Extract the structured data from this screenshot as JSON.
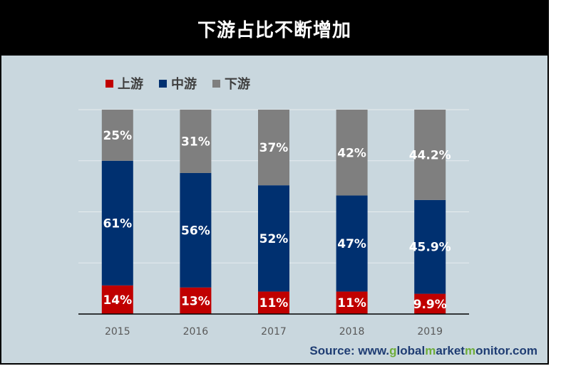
{
  "title": "下游占比不断增加",
  "legend": [
    {
      "label": "上游",
      "color": "#c00000"
    },
    {
      "label": "中游",
      "color": "#003070"
    },
    {
      "label": "下游",
      "color": "#7f7f7f"
    }
  ],
  "source": {
    "prefix": "Source: www.",
    "part1": "g",
    "part2": "lobal",
    "part3": "m",
    "part4": "arket",
    "part5": "m",
    "part6": "onitor",
    "suffix": ".com"
  },
  "chart_data": {
    "type": "bar",
    "stacked": true,
    "categories": [
      "2015",
      "2016",
      "2017",
      "2018",
      "2019"
    ],
    "series": [
      {
        "name": "上游",
        "color": "#c00000",
        "values": [
          14,
          13,
          11,
          11,
          9.9
        ],
        "labels": [
          "14%",
          "13%",
          "11%",
          "11%",
          "9.9%"
        ]
      },
      {
        "name": "中游",
        "color": "#003070",
        "values": [
          61,
          56,
          52,
          47,
          45.9
        ],
        "labels": [
          "61%",
          "56%",
          "52%",
          "47%",
          "45.9%"
        ]
      },
      {
        "name": "下游",
        "color": "#7f7f7f",
        "values": [
          25,
          31,
          37,
          42,
          44.2
        ],
        "labels": [
          "25%",
          "31%",
          "37%",
          "42%",
          "44.2%"
        ]
      }
    ],
    "ylim": [
      0,
      100
    ],
    "grid": true,
    "legend_position": "top-left"
  }
}
